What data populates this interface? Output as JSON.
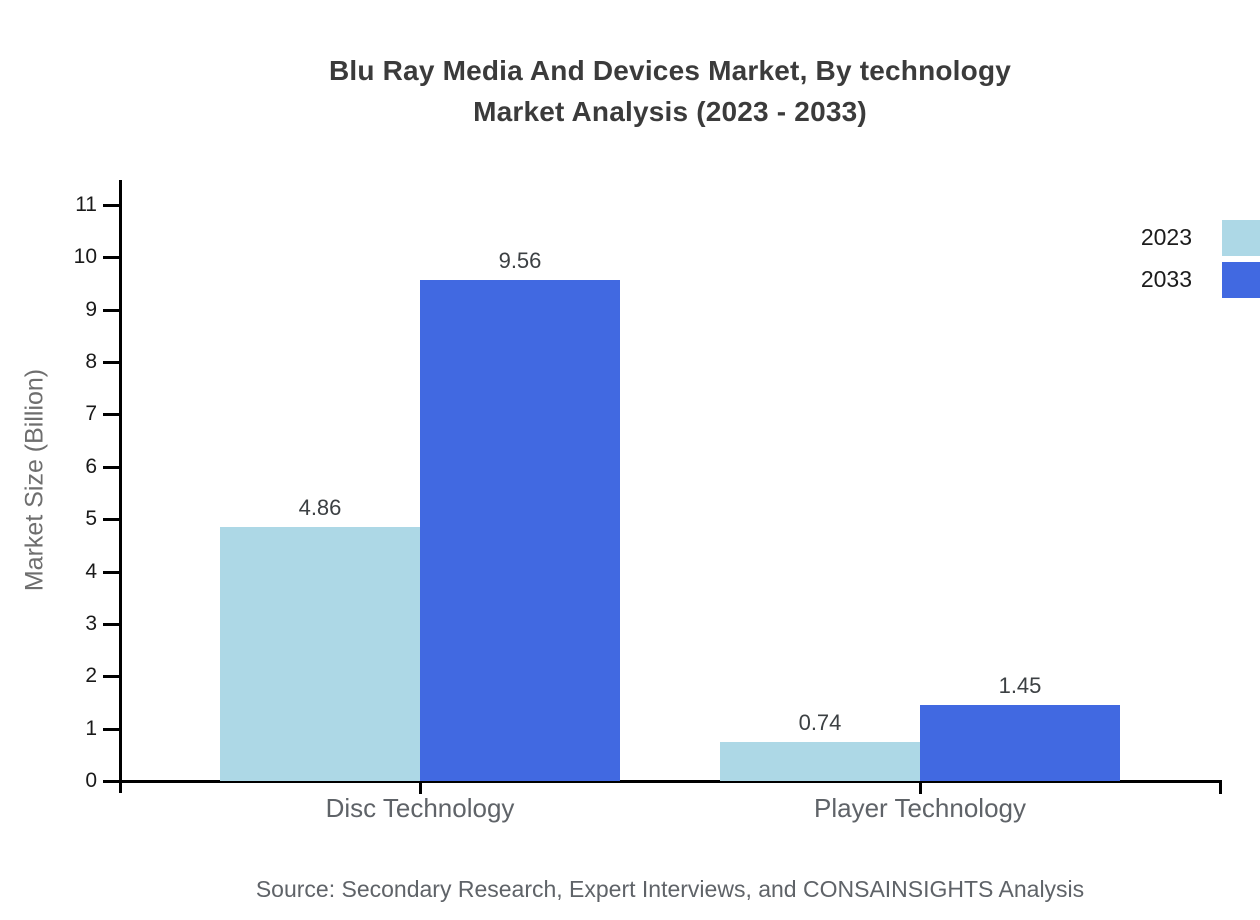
{
  "title": {
    "line1": "Blu Ray Media And Devices Market, By technology",
    "line2": "Market Analysis (2023 - 2033)"
  },
  "source_note": "Source: Secondary Research, Expert Interviews, and CONSAINSIGHTS Analysis",
  "chart_data": {
    "type": "bar",
    "title": "Blu Ray Media And Devices Market, By technology Market Analysis (2023 - 2033)",
    "categories": [
      "Disc Technology",
      "Player Technology"
    ],
    "series": [
      {
        "name": "2023",
        "color": "#ADD8E6",
        "values": [
          4.86,
          0.74
        ]
      },
      {
        "name": "2033",
        "color": "#4169E1",
        "values": [
          9.56,
          1.45
        ]
      }
    ],
    "xlabel": "",
    "ylabel": "Market Size (Billion)",
    "ylim": [
      0,
      11
    ],
    "yticks": [
      0,
      1,
      2,
      3,
      4,
      5,
      6,
      7,
      8,
      9,
      10,
      11
    ],
    "grid": false,
    "legend_position": "top-right",
    "value_label_decimals": 2,
    "axis_color": "#000000",
    "value_label_color": "#3c4043",
    "tick_label_color": "#1a1a1a",
    "category_label_color": "#5f6368"
  }
}
